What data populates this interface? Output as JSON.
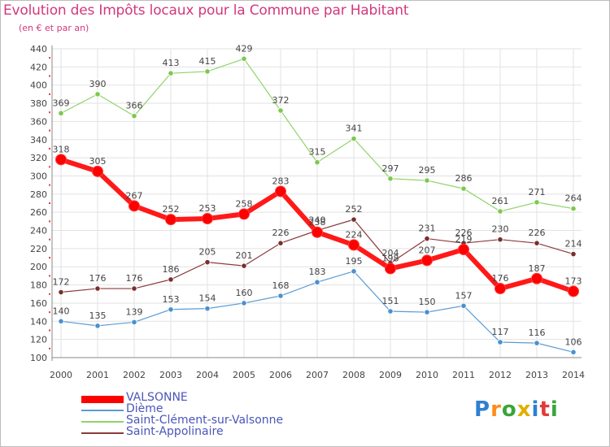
{
  "header": {
    "title": "Evolution des Impôts locaux pour la Commune par Habitant",
    "subtitle": "(en € et par an)"
  },
  "logo": {
    "text": "Proxiti",
    "colors": [
      "#2f7fd0",
      "#ff8c1a",
      "#3aa53a",
      "#e0b000",
      "#2f7fd0",
      "#e23a3a",
      "#3aa53a"
    ]
  },
  "chart_data": {
    "type": "line",
    "x": [
      "2000",
      "2001",
      "2002",
      "2003",
      "2004",
      "2005",
      "2006",
      "2007",
      "2008",
      "2009",
      "2010",
      "2011",
      "2012",
      "2013",
      "2014"
    ],
    "ylim": [
      100,
      440
    ],
    "yticks": [
      100,
      120,
      140,
      160,
      180,
      200,
      220,
      240,
      260,
      280,
      300,
      320,
      340,
      360,
      380,
      400,
      420,
      440
    ],
    "grid": true,
    "legend_position": "bottom-left",
    "series": [
      {
        "name": "Saint-Clément-sur-Valsonne",
        "color": "#8fd36a",
        "marker": "#7ec84f",
        "width": 1.2,
        "values": [
          369,
          390,
          366,
          413,
          415,
          429,
          372,
          315,
          341,
          297,
          295,
          286,
          261,
          271,
          264
        ]
      },
      {
        "name": "Dième",
        "color": "#5b9bd5",
        "marker": "#4a90d0",
        "width": 1.2,
        "values": [
          140,
          135,
          139,
          153,
          154,
          160,
          168,
          183,
          195,
          151,
          150,
          157,
          117,
          116,
          106
        ]
      },
      {
        "name": "Saint-Appolinaire",
        "color": "#8b3a3a",
        "marker": "#7a2e2e",
        "width": 1.2,
        "values": [
          172,
          176,
          176,
          186,
          205,
          201,
          226,
          240,
          252,
          204,
          231,
          226,
          230,
          226,
          214
        ]
      },
      {
        "name": "VALSONNE",
        "color": "#ff0000",
        "marker": "#ff0000",
        "width": 6,
        "values": [
          318,
          305,
          267,
          252,
          253,
          258,
          283,
          238,
          224,
          198,
          207,
          219,
          176,
          187,
          173
        ]
      }
    ]
  }
}
